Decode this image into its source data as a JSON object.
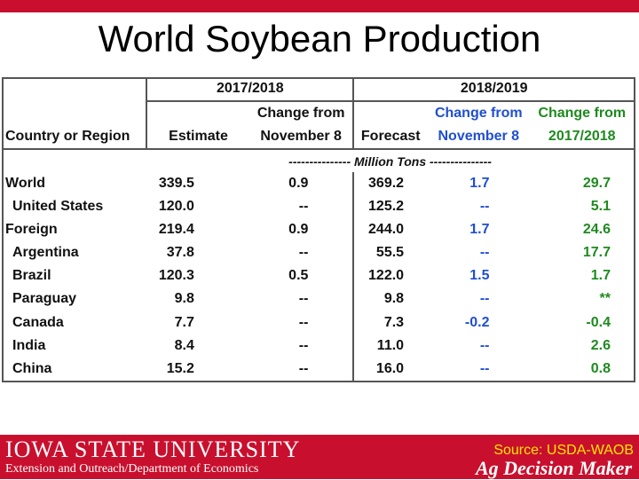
{
  "title": "World Soybean Production",
  "headers": {
    "year1": "2017/2018",
    "year2": "2018/2019",
    "col_region": "Country or Region",
    "col_estimate": "Estimate",
    "col_change_nov_a_top": "Change from",
    "col_change_nov_a_bottom": "November 8",
    "col_forecast": "Forecast",
    "col_change_nov_b_top": "Change from",
    "col_change_nov_b_bottom": "November 8",
    "col_change_prev_top": "Change from",
    "col_change_prev_bottom": "2017/2018",
    "units": "--------------- Million Tons ---------------"
  },
  "rows": [
    {
      "region": "World",
      "estimate": "339.5",
      "change1": "0.9",
      "forecast": "369.2",
      "change2": "1.7",
      "change3": "29.7"
    },
    {
      "region": "United States",
      "estimate": "120.0",
      "change1": "--",
      "forecast": "125.2",
      "change2": "--",
      "change3": "5.1"
    },
    {
      "region": "Foreign",
      "estimate": "219.4",
      "change1": "0.9",
      "forecast": "244.0",
      "change2": "1.7",
      "change3": "24.6"
    },
    {
      "region": "Argentina",
      "estimate": "37.8",
      "change1": "--",
      "forecast": "55.5",
      "change2": "--",
      "change3": "17.7"
    },
    {
      "region": "Brazil",
      "estimate": "120.3",
      "change1": "0.5",
      "forecast": "122.0",
      "change2": "1.5",
      "change3": "1.7"
    },
    {
      "region": "Paraguay",
      "estimate": "9.8",
      "change1": "--",
      "forecast": "9.8",
      "change2": "--",
      "change3": "**"
    },
    {
      "region": "Canada",
      "estimate": "7.7",
      "change1": "--",
      "forecast": "7.3",
      "change2": "-0.2",
      "change3": "-0.4"
    },
    {
      "region": "India",
      "estimate": "8.4",
      "change1": "--",
      "forecast": "11.0",
      "change2": "--",
      "change3": "2.6"
    },
    {
      "region": "China",
      "estimate": "15.2",
      "change1": "--",
      "forecast": "16.0",
      "change2": "--",
      "change3": "0.8"
    }
  ],
  "footer": {
    "university": "IOWA STATE UNIVERSITY",
    "department": "Extension and Outreach/Department of Economics",
    "source": "Source: USDA-WAOB",
    "brand": "Ag Decision Maker"
  },
  "colors": {
    "accent_red": "#c8102e",
    "blue": "#1f4fd1",
    "green": "#1e8a1e",
    "source_yellow": "#ffe600"
  }
}
